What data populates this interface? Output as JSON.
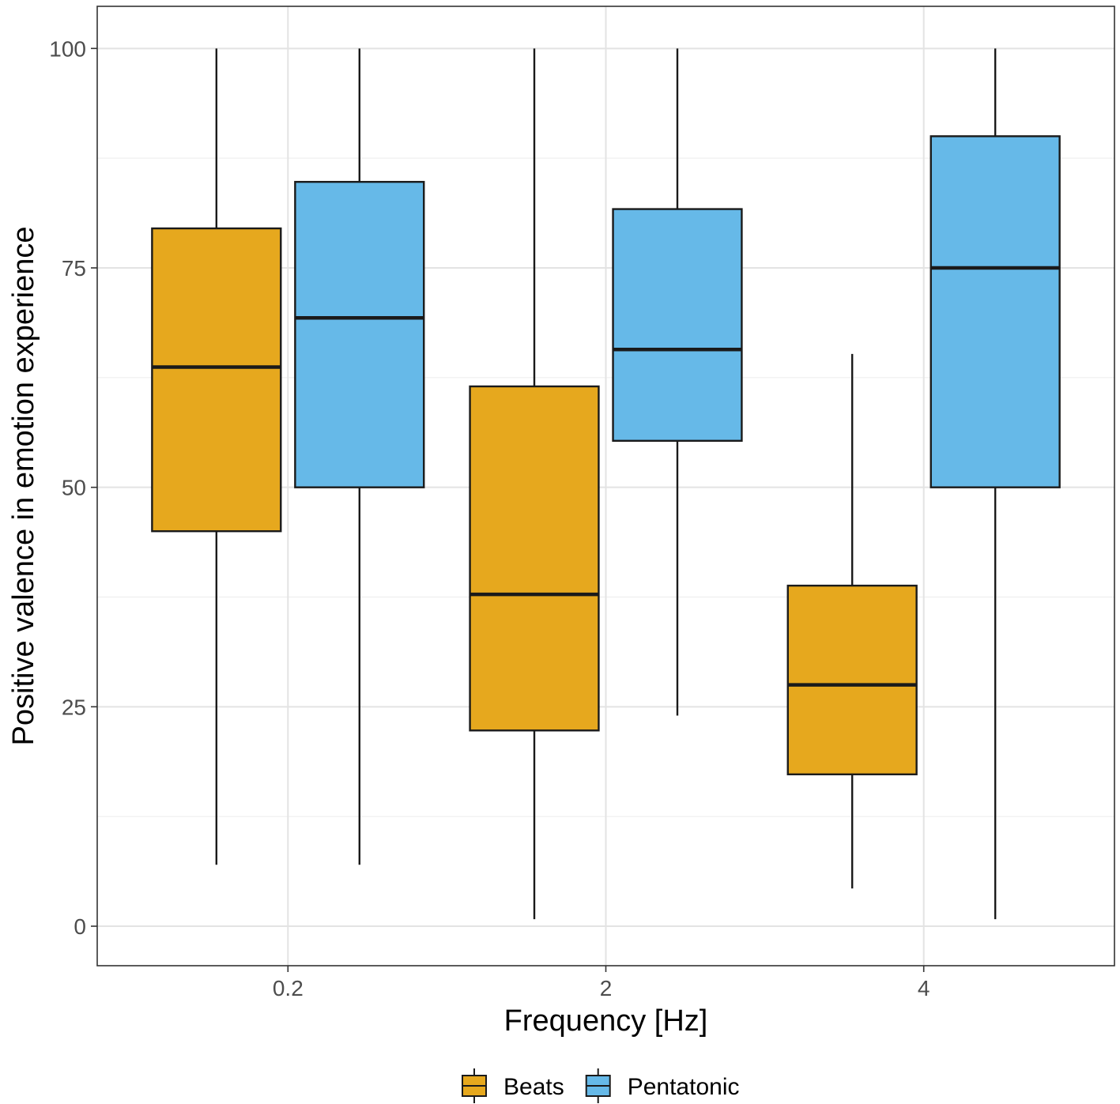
{
  "chart_data": {
    "type": "boxplot",
    "title": "",
    "xlabel": "Frequency [Hz]",
    "ylabel": "Positive valence in emotion experience",
    "categories": [
      "0.2",
      "2",
      "4"
    ],
    "ylim": [
      -4.5,
      104.8
    ],
    "yticks": [
      0,
      25,
      50,
      75,
      100
    ],
    "yticks_labels": [
      "0",
      "25",
      "50",
      "75",
      "100"
    ],
    "grid": true,
    "legend_position": "bottom",
    "series": [
      {
        "name": "Beats",
        "color": "#E6A81E",
        "boxes": [
          {
            "category": "0.2",
            "whisker_low": 7,
            "q1": 45,
            "median": 63.7,
            "q3": 79.5,
            "whisker_high": 100
          },
          {
            "category": "2",
            "whisker_low": 0.8,
            "q1": 22.3,
            "median": 37.8,
            "q3": 61.5,
            "whisker_high": 100
          },
          {
            "category": "4",
            "whisker_low": 4.3,
            "q1": 17.3,
            "median": 27.5,
            "q3": 38.8,
            "whisker_high": 65.2
          }
        ]
      },
      {
        "name": "Pentatonic",
        "color": "#66B9E8",
        "boxes": [
          {
            "category": "0.2",
            "whisker_low": 7,
            "q1": 50,
            "median": 69.3,
            "q3": 84.8,
            "whisker_high": 100
          },
          {
            "category": "2",
            "whisker_low": 24,
            "q1": 55.3,
            "median": 65.7,
            "q3": 81.7,
            "whisker_high": 100
          },
          {
            "category": "4",
            "whisker_low": 0.8,
            "q1": 50,
            "median": 75,
            "q3": 90,
            "whisker_high": 100
          }
        ]
      }
    ]
  }
}
